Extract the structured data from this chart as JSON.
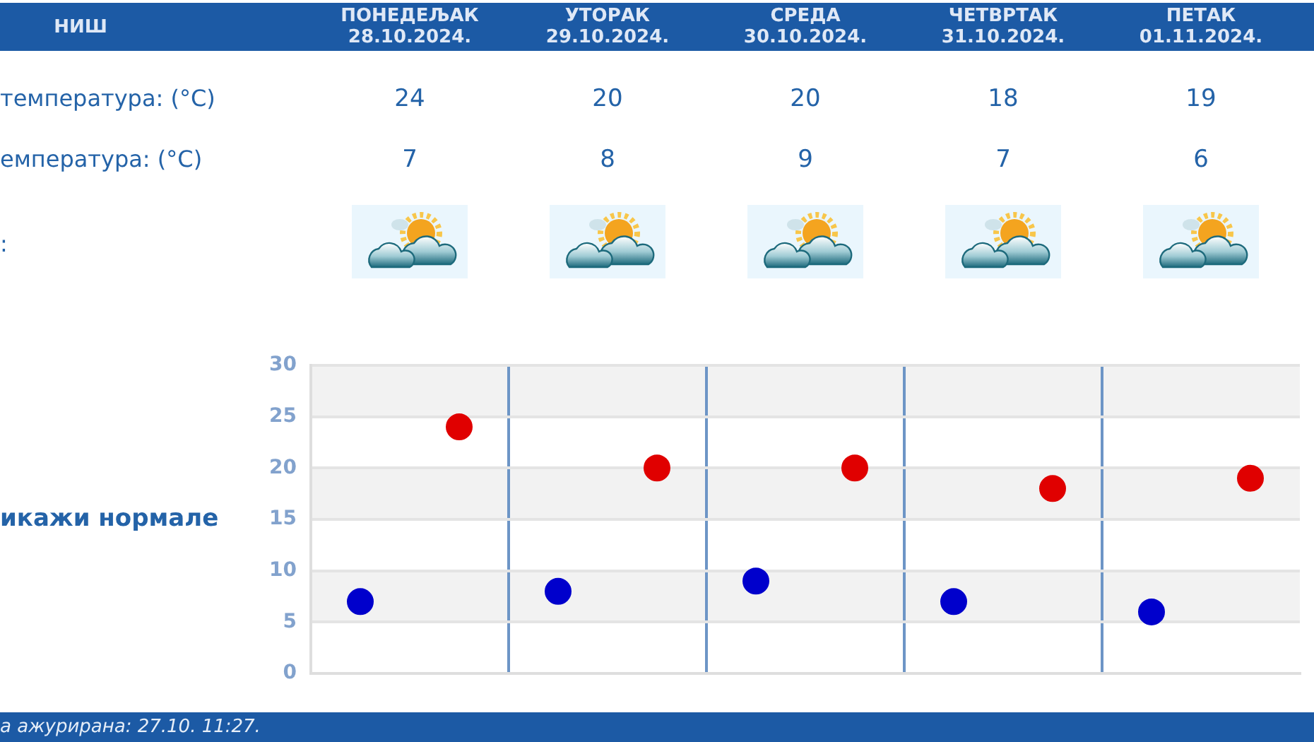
{
  "chart_data": {
    "type": "scatter",
    "title": "НИШ",
    "categories": [
      null,
      null,
      null,
      null,
      null
    ],
    "series": [
      {
        "color": "#e00000",
        "values": [
          24,
          20,
          20,
          18,
          19
        ]
      },
      {
        "color": "#0000cc",
        "values": [
          7,
          8,
          9,
          7,
          6
        ]
      }
    ],
    "ylim": [
      0,
      30
    ],
    "yticks": [
      0,
      5,
      10,
      15,
      20,
      25,
      30
    ],
    "grid": true,
    "data_labels": true,
    "marker": "circle",
    "annotations": [
      "ПОНЕДЕЉАК\n28.10.2024.",
      "УТОРАК\n29.10.2024.",
      "СРЕДА\n30.10.2024.",
      "ЧЕТВРТАК\n31.10.2024.",
      "ПЕТАК\n01.11.2024.",
      "температура: (°C)",
      "емпература: (°C)",
      ":",
      "икажи нормале",
      "а ажурирана: 27.10. 11:27."
    ]
  }
}
